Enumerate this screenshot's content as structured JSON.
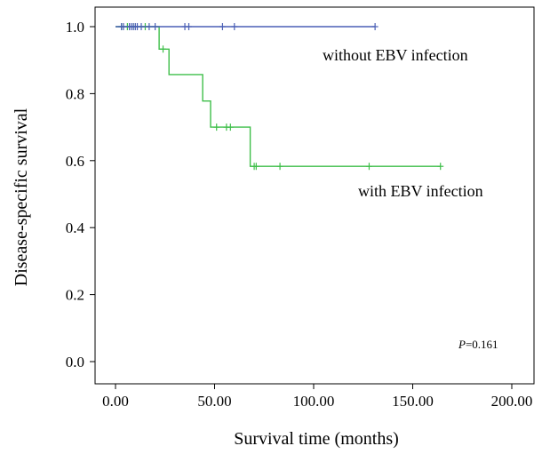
{
  "chart_data": {
    "type": "line",
    "subtype": "kaplan-meier",
    "xlabel": "Survival time (months)",
    "ylabel": "Disease-specific survival",
    "xlim": [
      0,
      200
    ],
    "ylim": [
      0,
      1.0
    ],
    "x_ticks": [
      "0.00",
      "50.00",
      "100.00",
      "150.00",
      "200.00"
    ],
    "y_ticks": [
      "0.0",
      "0.2",
      "0.4",
      "0.6",
      "0.8",
      "1.0"
    ],
    "grid": false,
    "series": [
      {
        "name": "without EBV infection",
        "color": "#4a5fb5",
        "steps": [
          [
            0,
            1.0
          ],
          [
            131,
            1.0
          ]
        ],
        "censored": [
          [
            3,
            1.0
          ],
          [
            4,
            1.0
          ],
          [
            7,
            1.0
          ],
          [
            8,
            1.0
          ],
          [
            9,
            1.0
          ],
          [
            10,
            1.0
          ],
          [
            11,
            1.0
          ],
          [
            13,
            1.0
          ],
          [
            17,
            1.0
          ],
          [
            20,
            1.0
          ],
          [
            35,
            1.0
          ],
          [
            37,
            1.0
          ],
          [
            54,
            1.0
          ],
          [
            60,
            1.0
          ],
          [
            131,
            1.0
          ]
        ]
      },
      {
        "name": "with EBV infection",
        "color": "#3fbf4a",
        "steps": [
          [
            0,
            1.0
          ],
          [
            22,
            1.0
          ],
          [
            22,
            0.933
          ],
          [
            27,
            0.933
          ],
          [
            27,
            0.857
          ],
          [
            44,
            0.857
          ],
          [
            44,
            0.778
          ],
          [
            48,
            0.778
          ],
          [
            48,
            0.7
          ],
          [
            68,
            0.7
          ],
          [
            68,
            0.583
          ],
          [
            164,
            0.583
          ]
        ],
        "censored": [
          [
            3,
            1.0
          ],
          [
            6,
            1.0
          ],
          [
            9,
            1.0
          ],
          [
            15,
            1.0
          ],
          [
            24,
            0.933
          ],
          [
            51,
            0.7
          ],
          [
            56,
            0.7
          ],
          [
            58,
            0.7
          ],
          [
            70,
            0.583
          ],
          [
            71,
            0.583
          ],
          [
            83,
            0.583
          ],
          [
            128,
            0.583
          ],
          [
            164,
            0.583
          ]
        ]
      }
    ],
    "annotations": {
      "p_label": "P",
      "p_value": "=0.161"
    }
  }
}
